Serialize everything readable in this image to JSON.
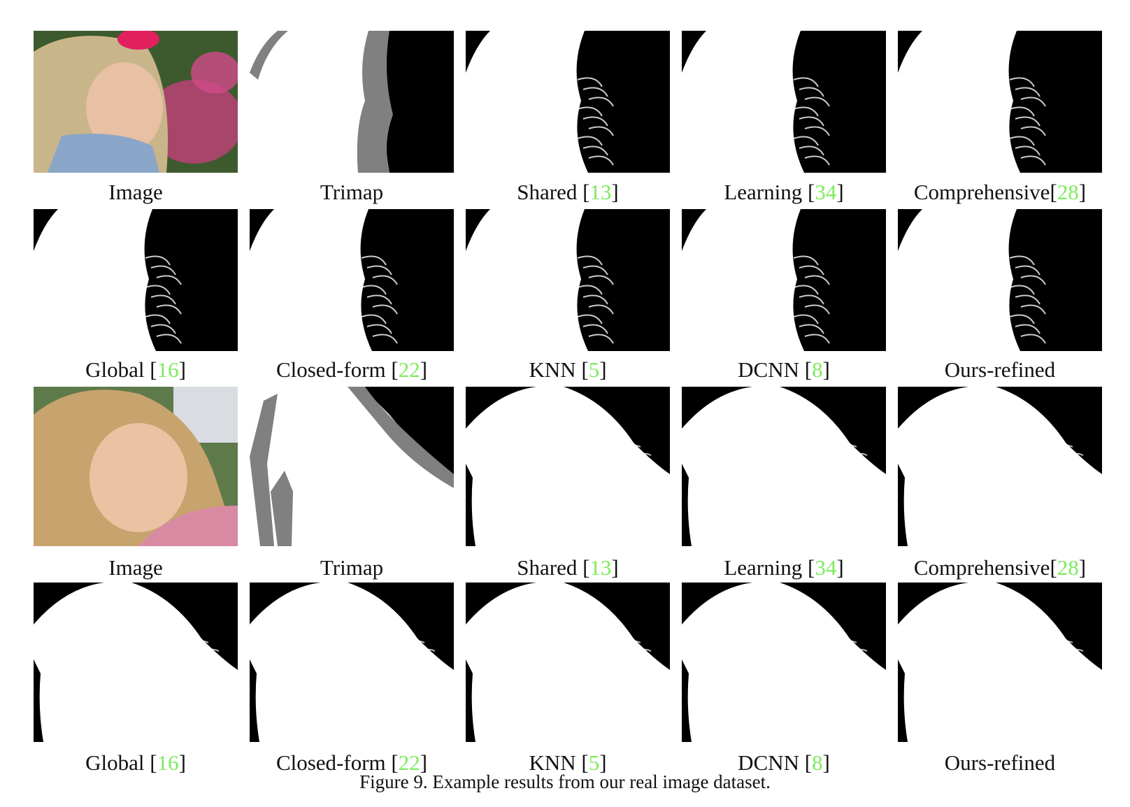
{
  "figure": {
    "caption": "Figure 9. Example results from our real image dataset."
  },
  "rows": [
    {
      "panel": "photo-row",
      "labels": [
        {
          "name": "Image",
          "ref": ""
        },
        {
          "name": "Trimap",
          "ref": ""
        },
        {
          "name": "Shared ",
          "ref": "13"
        },
        {
          "name": "Learning ",
          "ref": "34"
        },
        {
          "name": "Comprehensive",
          "ref": "28"
        }
      ]
    },
    {
      "panel": "result-row",
      "labels": [
        {
          "name": "Global ",
          "ref": "16"
        },
        {
          "name": "Closed-form ",
          "ref": "22"
        },
        {
          "name": "KNN ",
          "ref": "5"
        },
        {
          "name": "DCNN ",
          "ref": "8"
        },
        {
          "name": "Ours-refined",
          "ref": ""
        }
      ]
    },
    {
      "panel": "photo-row",
      "labels": [
        {
          "name": "Image",
          "ref": ""
        },
        {
          "name": "Trimap",
          "ref": ""
        },
        {
          "name": "Shared ",
          "ref": "13"
        },
        {
          "name": "Learning ",
          "ref": "34"
        },
        {
          "name": "Comprehensive",
          "ref": "28"
        }
      ]
    },
    {
      "panel": "result-row",
      "labels": [
        {
          "name": "Global ",
          "ref": "16"
        },
        {
          "name": "Closed-form ",
          "ref": "22"
        },
        {
          "name": "KNN ",
          "ref": "5"
        },
        {
          "name": "DCNN ",
          "ref": "8"
        },
        {
          "name": "Ours-refined",
          "ref": ""
        }
      ]
    }
  ],
  "colors": {
    "reference_link": "#7CEB5C",
    "foreground": "#ffffff",
    "background": "#000000",
    "unknown_region": "#808080"
  }
}
